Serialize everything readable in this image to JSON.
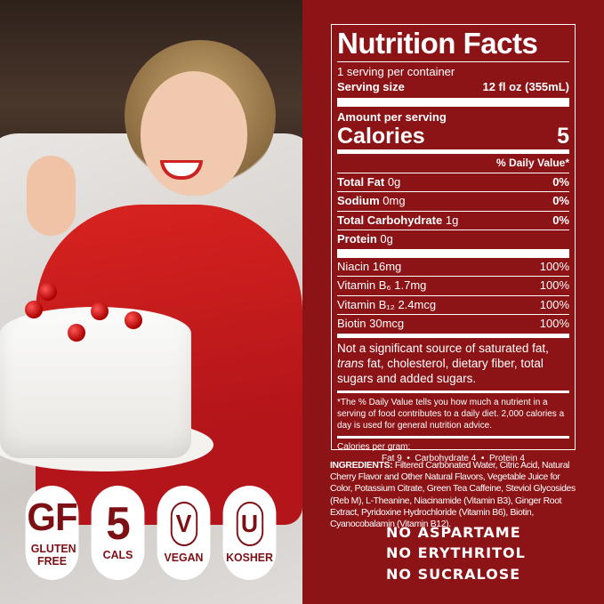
{
  "badges": [
    {
      "big": "GF",
      "small": "GLUTEN FREE"
    },
    {
      "big": "5",
      "small": "CALS"
    },
    {
      "big": "V",
      "small": "VEGAN"
    },
    {
      "big": "U",
      "small": "KOSHER"
    }
  ],
  "nutrition": {
    "title": "Nutrition Facts",
    "servings": "1 serving per container",
    "serving_size_label": "Serving size",
    "serving_size_value": "12 fl oz (355mL)",
    "amount_per_serving": "Amount per serving",
    "calories_label": "Calories",
    "calories_value": "5",
    "dv_header": "% Daily Value*",
    "rows": [
      {
        "name": "Total Fat",
        "amount": "0g",
        "dv": "0%"
      },
      {
        "name": "Sodium",
        "amount": "0mg",
        "dv": "0%"
      },
      {
        "name": "Total Carbohydrate",
        "amount": "1g",
        "dv": "0%"
      },
      {
        "name": "Protein",
        "amount": "0g",
        "dv": ""
      }
    ],
    "vitamins": [
      {
        "name": "Niacin 16mg",
        "dv": "100%"
      },
      {
        "name": "Vitamin B₆ 1.7mg",
        "dv": "100%"
      },
      {
        "name": "Vitamin B₁₂ 2.4mcg",
        "dv": "100%"
      },
      {
        "name": "Biotin 30mcg",
        "dv": "100%"
      }
    ],
    "not_significant_1": "Not a significant source of saturated fat,",
    "not_significant_trans": "trans",
    "not_significant_2": " fat, cholesterol, dietary fiber, total sugars and added sugars.",
    "footnote": "*The % Daily Value tells you how much a nutrient in a serving of food contributes to a daily diet. 2,000 calories a day is used for general nutrition advice.",
    "cal_per_gram_label": "Calories per gram:",
    "cal_per_gram": "Fat 9  •  Carbohydrate 4  •  Protein 4"
  },
  "ingredients_label": "INGREDIENTS:",
  "ingredients": " Filtered Carbonated Water, Citric Acid, Natural Cherry Flavor and Other Natural Flavors, Vegetable Juice for Color, Potassium Citrate, Green Tea Caffeine, Steviol Glycosides (Reb M), L-Theanine, Niacinamide (Vitamin B3), Ginger Root Extract, Pyridoxine Hydrochloride (Vitamin B6), Biotin, Cyanocobalamin (Vitamin B12).",
  "claims": [
    "NO ASPARTAME",
    "NO ERYTHRITOL",
    "NO SUCRALOSE"
  ],
  "colors": {
    "background": "#8c1417",
    "badge_text": "#7c1015"
  }
}
